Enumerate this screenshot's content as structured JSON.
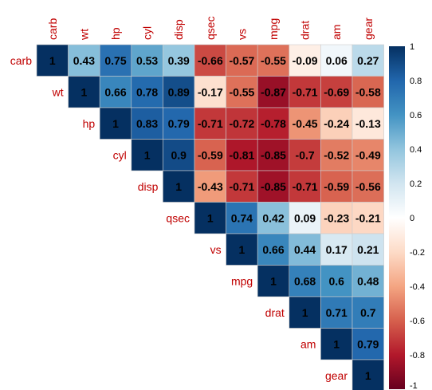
{
  "chart_data": {
    "type": "heatmap",
    "variables": [
      "carb",
      "wt",
      "hp",
      "cyl",
      "disp",
      "qsec",
      "vs",
      "mpg",
      "drat",
      "am",
      "gear"
    ],
    "matrix": [
      [
        1,
        0.43,
        0.75,
        0.53,
        0.39,
        -0.66,
        -0.57,
        -0.55,
        -0.09,
        0.06,
        0.27
      ],
      [
        null,
        1,
        0.66,
        0.78,
        0.89,
        -0.17,
        -0.55,
        -0.87,
        -0.71,
        -0.69,
        -0.58
      ],
      [
        null,
        null,
        1,
        0.83,
        0.79,
        -0.71,
        -0.72,
        -0.78,
        -0.45,
        -0.24,
        -0.13
      ],
      [
        null,
        null,
        null,
        1,
        0.9,
        -0.59,
        -0.81,
        -0.85,
        -0.7,
        -0.52,
        -0.49
      ],
      [
        null,
        null,
        null,
        null,
        1,
        -0.43,
        -0.71,
        -0.85,
        -0.71,
        -0.59,
        -0.56
      ],
      [
        null,
        null,
        null,
        null,
        null,
        1,
        0.74,
        0.42,
        0.09,
        -0.23,
        -0.21
      ],
      [
        null,
        null,
        null,
        null,
        null,
        null,
        1,
        0.66,
        0.44,
        0.17,
        0.21
      ],
      [
        null,
        null,
        null,
        null,
        null,
        null,
        null,
        1,
        0.68,
        0.6,
        0.48
      ],
      [
        null,
        null,
        null,
        null,
        null,
        null,
        null,
        null,
        1,
        0.71,
        0.7
      ],
      [
        null,
        null,
        null,
        null,
        null,
        null,
        null,
        null,
        null,
        1,
        0.79
      ],
      [
        null,
        null,
        null,
        null,
        null,
        null,
        null,
        null,
        null,
        null,
        1
      ]
    ],
    "colorbar": {
      "range": [
        -1,
        1
      ],
      "ticks": [
        "1",
        "0.8",
        "0.6",
        "0.4",
        "0.2",
        "0",
        "-0.2",
        "-0.4",
        "-0.6",
        "-0.8",
        "-1"
      ]
    },
    "colors": {
      "negative": "#67001f",
      "neutral": "#ffffff",
      "positive": "#053061",
      "label": "#c00000",
      "cell_border": "#cccccc"
    }
  }
}
